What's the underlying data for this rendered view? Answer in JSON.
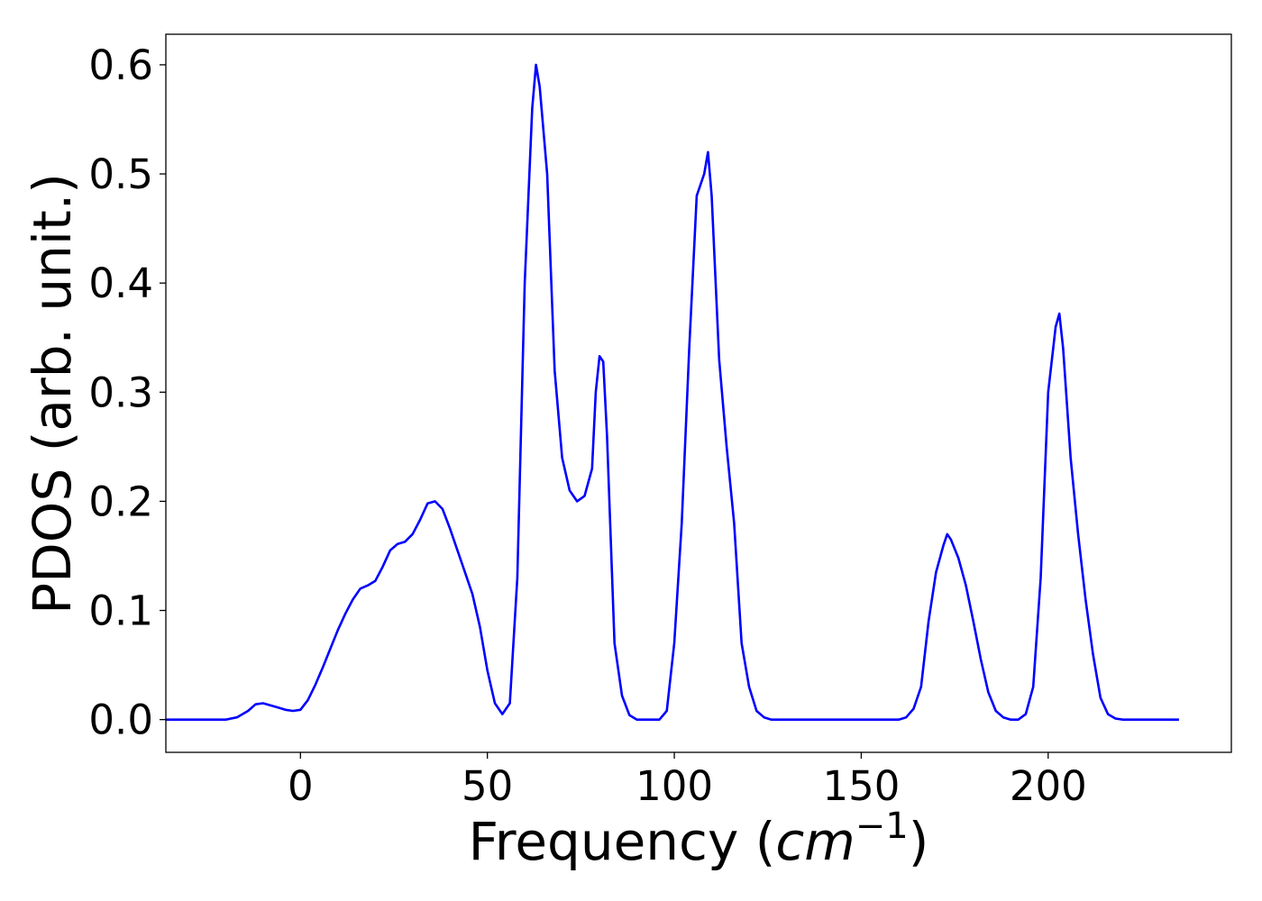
{
  "chart_data": {
    "type": "line",
    "title": "",
    "xlabel": "Frequency (",
    "xlabel_math_base": "cm",
    "xlabel_math_exp": "−1",
    "xlabel_close": ")",
    "ylabel": "PDOS (arb. unit.)",
    "xlim": [
      -36,
      249
    ],
    "ylim": [
      -0.03,
      0.628
    ],
    "xticks": [
      0,
      50,
      100,
      150,
      200
    ],
    "xtick_labels": [
      "0",
      "50",
      "100",
      "150",
      "200"
    ],
    "yticks": [
      0.0,
      0.1,
      0.2,
      0.3,
      0.4,
      0.5,
      0.6
    ],
    "ytick_labels": [
      "0.0",
      "0.1",
      "0.2",
      "0.3",
      "0.4",
      "0.5",
      "0.6"
    ],
    "grid": false,
    "line_color": "#0000ff",
    "series": [
      {
        "x": [
          -36,
          -20,
          -17,
          -14,
          -12,
          -10,
          -8,
          -6,
          -4,
          -2,
          0,
          2,
          4,
          6,
          8,
          10,
          12,
          14,
          16,
          18,
          20,
          22,
          24,
          26,
          28,
          30,
          32,
          34,
          36,
          38,
          40,
          42,
          44,
          46,
          48,
          50,
          52,
          54,
          56,
          58,
          60,
          62,
          63,
          64,
          66,
          68,
          70,
          72,
          74,
          76,
          78,
          79,
          80,
          81,
          82,
          84,
          86,
          88,
          90,
          92,
          94,
          96,
          98,
          100,
          102,
          104,
          106,
          108,
          109,
          110,
          112,
          114,
          116,
          118,
          120,
          122,
          124,
          126,
          128,
          130,
          160,
          162,
          164,
          166,
          168,
          170,
          172,
          173,
          174,
          176,
          178,
          180,
          182,
          184,
          186,
          188,
          190,
          192,
          194,
          196,
          198,
          200,
          202,
          203,
          204,
          206,
          208,
          210,
          212,
          214,
          216,
          218,
          220,
          235
        ],
        "values": [
          0.0,
          0.0,
          0.002,
          0.008,
          0.014,
          0.015,
          0.013,
          0.011,
          0.009,
          0.008,
          0.009,
          0.018,
          0.032,
          0.048,
          0.065,
          0.082,
          0.097,
          0.11,
          0.12,
          0.123,
          0.127,
          0.14,
          0.155,
          0.161,
          0.163,
          0.17,
          0.183,
          0.198,
          0.2,
          0.193,
          0.175,
          0.155,
          0.135,
          0.115,
          0.085,
          0.045,
          0.015,
          0.005,
          0.015,
          0.13,
          0.4,
          0.56,
          0.6,
          0.58,
          0.5,
          0.32,
          0.24,
          0.21,
          0.2,
          0.205,
          0.23,
          0.3,
          0.333,
          0.328,
          0.26,
          0.07,
          0.022,
          0.004,
          0.0,
          0.0,
          0.0,
          0.0,
          0.008,
          0.07,
          0.18,
          0.34,
          0.48,
          0.5,
          0.52,
          0.48,
          0.33,
          0.25,
          0.18,
          0.07,
          0.03,
          0.008,
          0.002,
          0.0,
          0.0,
          0.0,
          0.0,
          0.002,
          0.01,
          0.03,
          0.09,
          0.135,
          0.16,
          0.17,
          0.165,
          0.148,
          0.123,
          0.09,
          0.055,
          0.025,
          0.008,
          0.002,
          0.0,
          0.0,
          0.005,
          0.03,
          0.13,
          0.3,
          0.36,
          0.372,
          0.34,
          0.24,
          0.17,
          0.11,
          0.06,
          0.02,
          0.005,
          0.001,
          0.0,
          0.0
        ]
      }
    ]
  }
}
